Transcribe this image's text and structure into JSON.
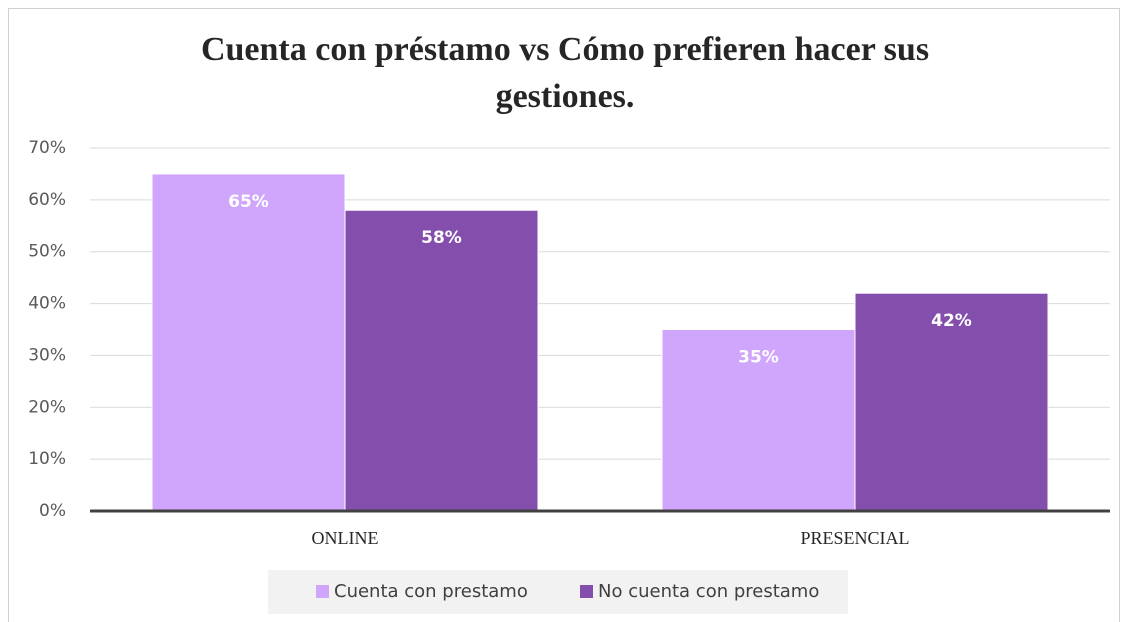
{
  "chart_data": {
    "type": "bar",
    "title": "Cuenta con préstamo vs Cómo prefieren hacer sus gestiones.",
    "categories": [
      "ONLINE",
      "PRESENCIAL"
    ],
    "series": [
      {
        "name": "Cuenta con prestamo",
        "color": "#cfa6fc",
        "values": [
          65,
          35
        ],
        "value_labels": [
          "65%",
          "35%"
        ]
      },
      {
        "name": "No cuenta con prestamo",
        "color": "#844fac",
        "values": [
          58,
          42
        ],
        "value_labels": [
          "58%",
          "42%"
        ]
      }
    ],
    "ylim": [
      0,
      70
    ],
    "yticks": [
      {
        "value": 0,
        "label": "0%"
      },
      {
        "value": 10,
        "label": "10%"
      },
      {
        "value": 20,
        "label": "20%"
      },
      {
        "value": 30,
        "label": "30%"
      },
      {
        "value": 40,
        "label": "40%"
      },
      {
        "value": 50,
        "label": "50%"
      },
      {
        "value": 60,
        "label": "60%"
      },
      {
        "value": 70,
        "label": "70%"
      }
    ],
    "grid": true,
    "legend": "bottom"
  }
}
